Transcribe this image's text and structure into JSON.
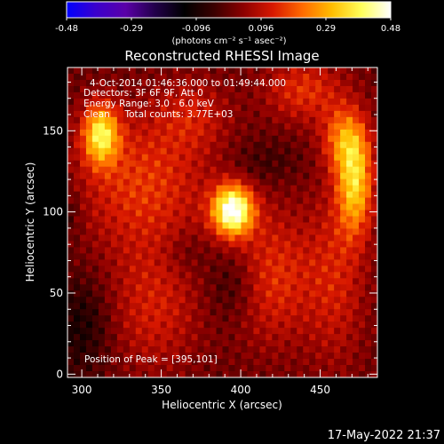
{
  "colorbar": {
    "ticks": [
      "-0.48",
      "-0.29",
      "-0.096",
      "0.096",
      "0.29",
      "0.48"
    ],
    "unit_label": "(photons cm⁻² s⁻¹ asec⁻²)",
    "colors": [
      "#0000ff",
      "#3b00cc",
      "#5a00a8",
      "#22004a",
      "#000000",
      "#3a0000",
      "#8c0000",
      "#d81800",
      "#ff6a00",
      "#ffbd00",
      "#ffff5a",
      "#ffffff"
    ]
  },
  "chart_data": {
    "type": "heatmap",
    "title": "Reconstructed RHESSI Image",
    "xlabel": "Heliocentric X (arcsec)",
    "ylabel": "Heliocentric Y (arcsec)",
    "xlim": [
      291,
      486
    ],
    "ylim": [
      -2,
      189
    ],
    "x_ticks": [
      300,
      350,
      400,
      450
    ],
    "y_ticks": [
      0,
      50,
      100,
      150
    ],
    "annotations": [
      "4-Oct-2014 01:46:36.000 to 01:49:44.000",
      "Detectors: 3F 6F 9F, Att 0",
      "Energy Range: 3.0 - 6.0 keV",
      "Clean     Total counts: 3.77E+03"
    ],
    "peak_label": "Position of Peak = [395,101]",
    "peak": [
      395,
      101
    ],
    "sources": [
      {
        "x": 395,
        "y": 101,
        "sx": 9,
        "sy": 11,
        "amp": 0.48
      },
      {
        "x": 312,
        "y": 148,
        "sx": 8,
        "sy": 13,
        "amp": 0.34
      },
      {
        "x": 472,
        "y": 118,
        "sx": 8,
        "sy": 22,
        "amp": 0.31
      },
      {
        "x": 465,
        "y": 145,
        "sx": 10,
        "sy": 14,
        "amp": 0.2
      },
      {
        "x": 338,
        "y": 118,
        "sx": 30,
        "sy": 30,
        "amp": 0.16
      },
      {
        "x": 420,
        "y": 60,
        "sx": 18,
        "sy": 30,
        "amp": 0.15
      },
      {
        "x": 440,
        "y": 175,
        "sx": 18,
        "sy": 14,
        "amp": 0.15
      },
      {
        "x": 345,
        "y": 40,
        "sx": 22,
        "sy": 28,
        "amp": 0.12
      },
      {
        "x": 370,
        "y": 160,
        "sx": 16,
        "sy": 16,
        "amp": 0.1
      },
      {
        "x": 460,
        "y": 60,
        "sx": 14,
        "sy": 40,
        "amp": 0.12
      }
    ],
    "negatives": [
      {
        "x": 300,
        "y": 30,
        "sx": 14,
        "sy": 22,
        "amp": -0.1
      },
      {
        "x": 395,
        "y": 55,
        "sx": 12,
        "sy": 16,
        "amp": -0.08
      },
      {
        "x": 415,
        "y": 130,
        "sx": 16,
        "sy": 10,
        "amp": -0.05
      },
      {
        "x": 365,
        "y": 75,
        "sx": 10,
        "sy": 10,
        "amp": -0.05
      },
      {
        "x": 292,
        "y": 100,
        "sx": 6,
        "sy": 12,
        "amp": -0.06
      }
    ],
    "color_range": [
      -0.48,
      0.48
    ]
  },
  "footer": {
    "timestamp": "17-May-2022 21:37"
  }
}
